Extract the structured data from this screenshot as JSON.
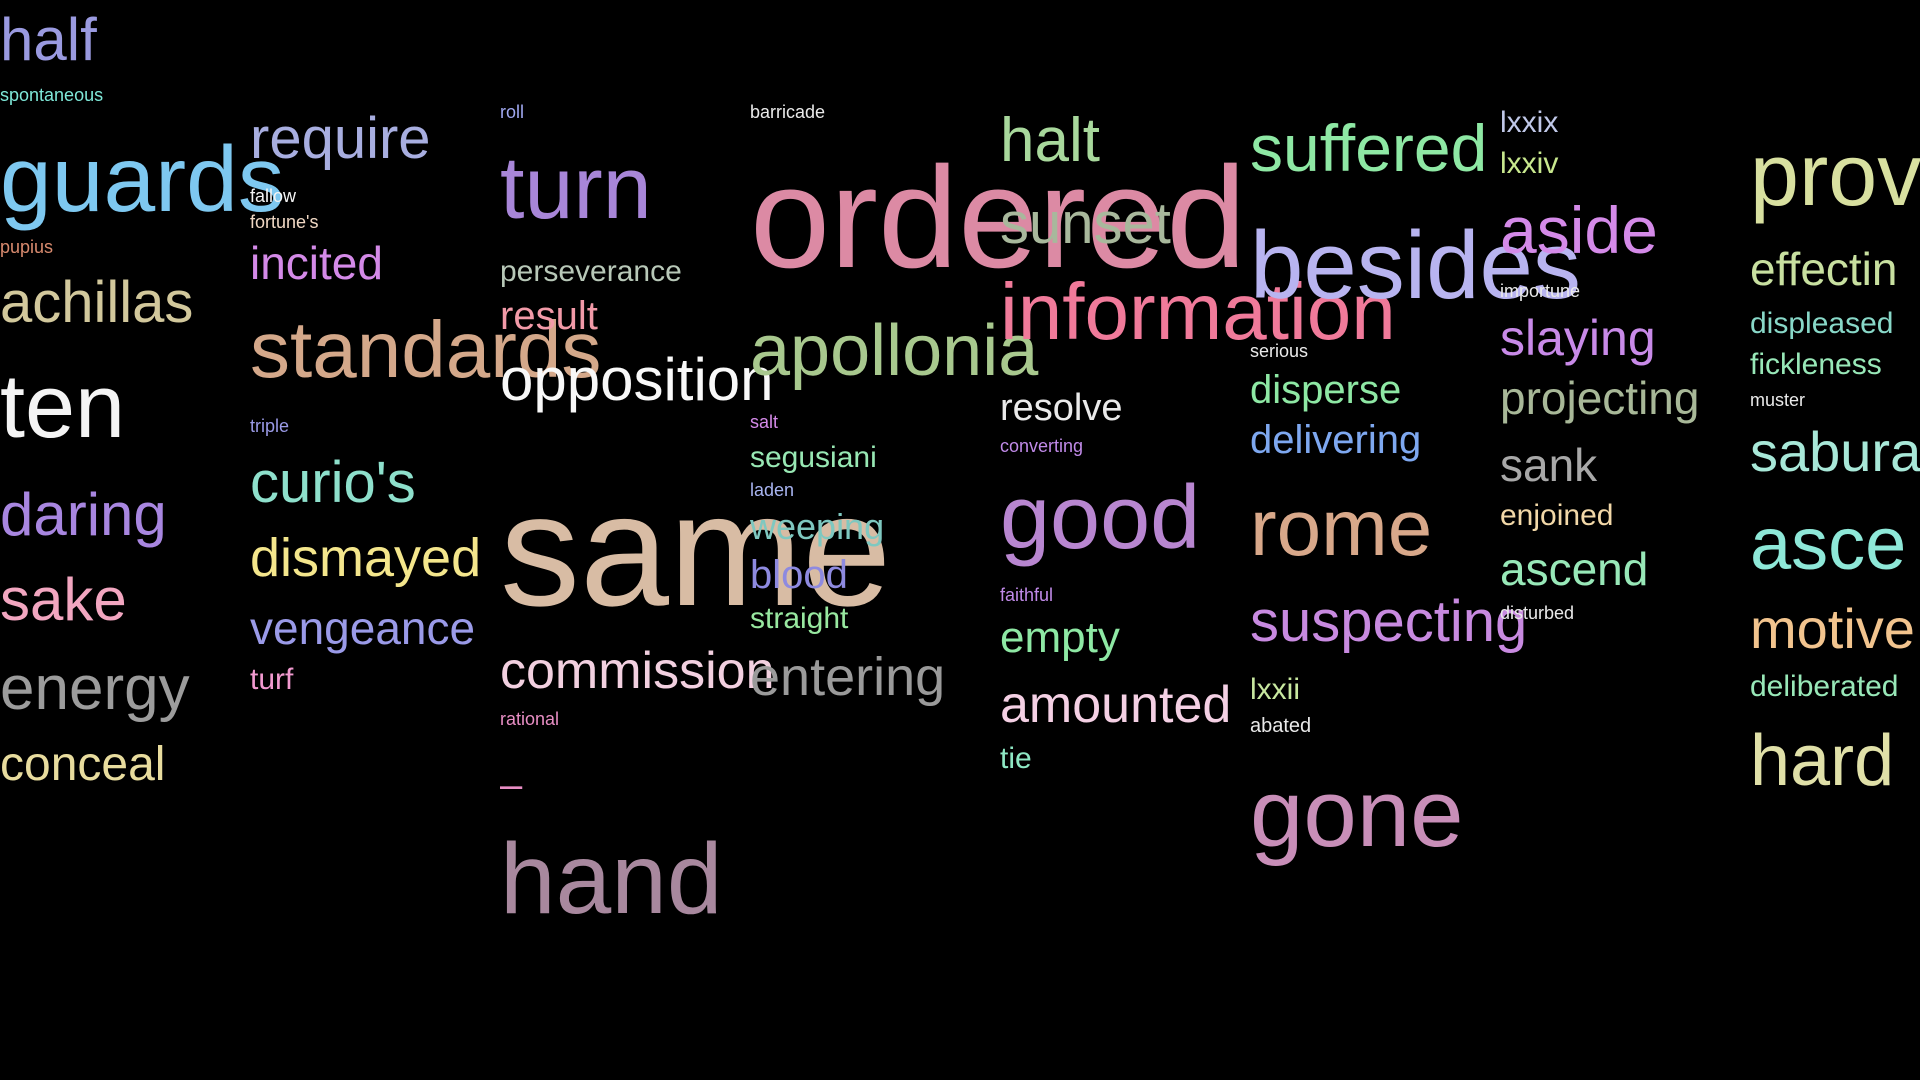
{
  "background_color": "#000000",
  "words": [
    {
      "text": "half",
      "color": "#9a9ae0"
    },
    {
      "text": "spontaneous",
      "color": "#7fe8d8"
    },
    {
      "text": "guards",
      "color": "#7ec8f0"
    },
    {
      "text": "pupius",
      "color": "#d88a6e"
    },
    {
      "text": "achillas",
      "color": "#d2c89c"
    },
    {
      "text": "ten",
      "color": "#f4f4f4"
    },
    {
      "text": "daring",
      "color": "#a886e0"
    },
    {
      "text": "sake",
      "color": "#f2a6c0"
    },
    {
      "text": "energy",
      "color": "#9c9c9c"
    },
    {
      "text": "conceal",
      "color": "#e8dc9e"
    },
    {
      "text": "require",
      "color": "#a8aee0"
    },
    {
      "text": "fallow",
      "color": "#f4f4f4"
    },
    {
      "text": "fortune's",
      "color": "#f0d8c4"
    },
    {
      "text": "incited",
      "color": "#d48ae8"
    },
    {
      "text": "standards",
      "color": "#d4a88a"
    },
    {
      "text": "triple",
      "color": "#9a9ae6"
    },
    {
      "text": "curio's",
      "color": "#8ee0cc"
    },
    {
      "text": "dismayed",
      "color": "#f4e68c"
    },
    {
      "text": "vengeance",
      "color": "#9a9ae8"
    },
    {
      "text": "turf",
      "color": "#f29ad0"
    },
    {
      "text": "roll",
      "color": "#a0a8f0"
    },
    {
      "text": "turn",
      "color": "#a886d8"
    },
    {
      "text": "perseverance",
      "color": "#b8c8b8"
    },
    {
      "text": "result",
      "color": "#f29aa8"
    },
    {
      "text": "opposition",
      "color": "#f8f8f8"
    },
    {
      "text": "same",
      "color": "#d8bca4"
    },
    {
      "text": "commission",
      "color": "#f2d0e0"
    },
    {
      "text": "rational",
      "color": "#e88ec4"
    },
    {
      "text": "–",
      "color": "#e88ec4"
    },
    {
      "text": "hand",
      "color": "#a8889e"
    },
    {
      "text": "barricade",
      "color": "#eaeaea"
    },
    {
      "text": "ordered",
      "color": "#dc8aa4"
    },
    {
      "text": "apollonia",
      "color": "#a8c88e"
    },
    {
      "text": "salt",
      "color": "#d48ae8"
    },
    {
      "text": "segusiani",
      "color": "#98e8b4"
    },
    {
      "text": "laden",
      "color": "#a8b4f0"
    },
    {
      "text": "weeping",
      "color": "#7ec8c0"
    },
    {
      "text": "blood",
      "color": "#8e8ae0"
    },
    {
      "text": "straight",
      "color": "#98e8a0"
    },
    {
      "text": "entering",
      "color": "#9a9a9a"
    },
    {
      "text": "halt",
      "color": "#a8d89c"
    },
    {
      "text": "sunset",
      "color": "#a8b89c"
    },
    {
      "text": "information",
      "color": "#f07a9a"
    },
    {
      "text": "resolve",
      "color": "#eaeaea"
    },
    {
      "text": "converting",
      "color": "#c08ae8"
    },
    {
      "text": "good",
      "color": "#b886d0"
    },
    {
      "text": "faithful",
      "color": "#c08ae8"
    },
    {
      "text": "empty",
      "color": "#8ee8a4"
    },
    {
      "text": "amounted",
      "color": "#f4d0e4"
    },
    {
      "text": "tie",
      "color": "#8ee8c4"
    },
    {
      "text": "suffered",
      "color": "#8ee8a4"
    },
    {
      "text": "besides",
      "color": "#b8b4f0"
    },
    {
      "text": "serious",
      "color": "#eaeaea"
    },
    {
      "text": "disperse",
      "color": "#8ee8a4"
    },
    {
      "text": "delivering",
      "color": "#7ea8f0"
    },
    {
      "text": "rome",
      "color": "#d8a88a"
    },
    {
      "text": "suspecting",
      "color": "#c88ae0"
    },
    {
      "text": "lxxii",
      "color": "#c8e8a0"
    },
    {
      "text": "abated",
      "color": "#e8e8e8"
    },
    {
      "text": "gone",
      "color": "#c88eb8"
    },
    {
      "text": "lxxix",
      "color": "#c0c8e8"
    },
    {
      "text": "lxxiv",
      "color": "#c8e88e"
    },
    {
      "text": "aside",
      "color": "#d48ae8"
    },
    {
      "text": "importune",
      "color": "#eaeaea"
    },
    {
      "text": "slaying",
      "color": "#c88ae8"
    },
    {
      "text": "projecting",
      "color": "#a8b898"
    },
    {
      "text": "sank",
      "color": "#a8a8a8"
    },
    {
      "text": "enjoined",
      "color": "#f2d8a8"
    },
    {
      "text": "ascend",
      "color": "#98e8b8"
    },
    {
      "text": "disturbed",
      "color": "#eaeaea"
    },
    {
      "text": "prov",
      "color": "#d8e0a0"
    },
    {
      "text": "effectin",
      "color": "#c8e0a0"
    },
    {
      "text": "displeased",
      "color": "#88d8c8"
    },
    {
      "text": "fickleness",
      "color": "#98e8b8"
    },
    {
      "text": "muster",
      "color": "#eaeaea"
    },
    {
      "text": "sabura",
      "color": "#a8e8d8"
    },
    {
      "text": "asce",
      "color": "#8ee8d8"
    },
    {
      "text": "motive",
      "color": "#f2c48e"
    },
    {
      "text": "deliberated",
      "color": "#98e8b8"
    },
    {
      "text": "hard",
      "color": "#e0e0a8"
    }
  ]
}
